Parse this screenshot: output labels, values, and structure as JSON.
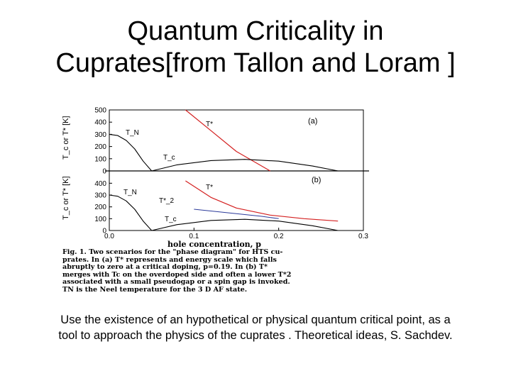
{
  "title": {
    "line1": "Quantum Criticality in",
    "line2": "Cuprates[from Tallon and Loram ]"
  },
  "figure": {
    "y_axis_label": "T_c or T* [K]",
    "x_axis_label": "hole concentration, p",
    "top_panel": {
      "panel_label": "(a)",
      "y_ticks": [
        "500",
        "400",
        "300",
        "200",
        "100",
        "0"
      ],
      "labels": {
        "tn": "T_N",
        "tstar": "T*",
        "tc": "T_c"
      }
    },
    "bottom_panel": {
      "panel_label": "(b)",
      "y_ticks": [
        "400",
        "300",
        "200",
        "100",
        "0"
      ],
      "labels": {
        "tn": "T_N",
        "tstar": "T*",
        "tstar2": "T*_2",
        "tc": "T_c"
      }
    },
    "x_ticks": [
      "0.0",
      "0.1",
      "0.2",
      "0.3"
    ],
    "colors": {
      "tstar_line": "#d42020",
      "tstar2_line": "#2b3a9a",
      "curve": "#000000"
    }
  },
  "chart_data": [
    {
      "type": "line",
      "panel": "(a)",
      "xlabel": "hole concentration, p",
      "ylabel": "T_c or T* [K]",
      "xlim": [
        0.0,
        0.3
      ],
      "ylim": [
        0,
        500
      ],
      "series": [
        {
          "name": "T_N",
          "x": [
            0.0,
            0.01,
            0.02,
            0.03,
            0.04,
            0.05
          ],
          "y": [
            300,
            290,
            250,
            180,
            80,
            0
          ]
        },
        {
          "name": "T*",
          "x": [
            0.09,
            0.12,
            0.15,
            0.19
          ],
          "y": [
            500,
            330,
            160,
            0
          ]
        },
        {
          "name": "T_c",
          "x": [
            0.05,
            0.08,
            0.12,
            0.16,
            0.2,
            0.24,
            0.27
          ],
          "y": [
            0,
            50,
            85,
            95,
            80,
            40,
            0
          ]
        }
      ]
    },
    {
      "type": "line",
      "panel": "(b)",
      "xlabel": "hole concentration, p",
      "ylabel": "T_c or T* [K]",
      "xlim": [
        0.0,
        0.3
      ],
      "ylim": [
        0,
        450
      ],
      "series": [
        {
          "name": "T_N",
          "x": [
            0.0,
            0.01,
            0.02,
            0.03,
            0.04,
            0.05
          ],
          "y": [
            300,
            290,
            250,
            180,
            80,
            0
          ]
        },
        {
          "name": "T*",
          "x": [
            0.09,
            0.12,
            0.15,
            0.19,
            0.23,
            0.27
          ],
          "y": [
            420,
            280,
            190,
            130,
            100,
            80
          ]
        },
        {
          "name": "T*_2",
          "x": [
            0.1,
            0.14,
            0.18,
            0.2
          ],
          "y": [
            180,
            150,
            120,
            100
          ]
        },
        {
          "name": "T_c",
          "x": [
            0.05,
            0.08,
            0.12,
            0.16,
            0.2,
            0.24,
            0.27
          ],
          "y": [
            0,
            50,
            85,
            95,
            80,
            40,
            0
          ]
        }
      ]
    }
  ],
  "caption": {
    "line1": "Fig. 1. Two scenarios for the \"phase diagram\" for HTS cu-",
    "line2": "prates. In (a) T* represents and energy scale which falls",
    "line3": "abruptly to zero at a critical doping, p=0.19. In (b) T*",
    "line4": "merges with Tc on the overdoped side and often a lower T*2",
    "line5": "associated with a small pseudogap or a spin gap is invoked.",
    "line6": "TN is the Neel temperature for the 3 D AF state."
  },
  "bottom_text": {
    "line1": "Use the existence of an hypothetical or physical quantum critical point, as a",
    "line2": "tool to approach the physics of the cuprates . Theoretical ideas, S. Sachdev."
  }
}
